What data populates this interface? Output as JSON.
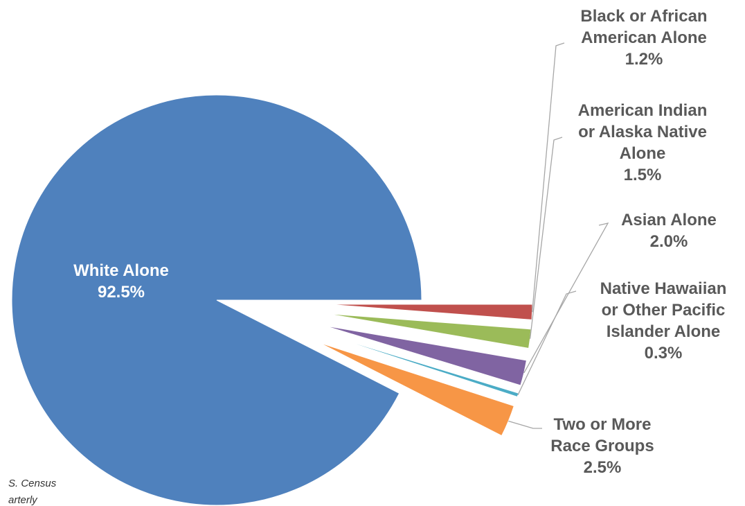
{
  "chart_data": {
    "type": "pie",
    "title": "",
    "slices": [
      {
        "label": "White Alone",
        "value": 92.5,
        "display": "92.5%",
        "color": "#4f81bd"
      },
      {
        "label": "Black or African American Alone",
        "value": 1.2,
        "display": "1.2%",
        "color": "#c0504d"
      },
      {
        "label": "American Indian or Alaska Native Alone",
        "value": 1.5,
        "display": "1.5%",
        "color": "#9bbb59"
      },
      {
        "label": "Asian Alone",
        "value": 2.0,
        "display": "2.0%",
        "color": "#8064a2"
      },
      {
        "label": "Native Hawaiian or Other Pacific Islander Alone",
        "value": 0.3,
        "display": "0.3%",
        "color": "#4bacc6"
      },
      {
        "label": "Two or More Race Groups",
        "value": 2.5,
        "display": "2.5%",
        "color": "#f79646"
      }
    ],
    "label_lines": [
      [
        "White Alone"
      ],
      [
        "Black or African",
        "American Alone"
      ],
      [
        "American Indian",
        "or Alaska Native",
        "Alone"
      ],
      [
        "Asian Alone"
      ],
      [
        "Native Hawaiian",
        "or Other Pacific",
        "Islander Alone"
      ],
      [
        "Two or More",
        "Race Groups"
      ]
    ],
    "exploded": [
      "Black or African American Alone",
      "American Indian or Alaska Native Alone",
      "Asian Alone",
      "Native Hawaiian or Other Pacific Islander Alone",
      "Two or More Race Groups"
    ],
    "legend": "none"
  },
  "footnote_lines": [
    "S. Census",
    "arterly"
  ]
}
